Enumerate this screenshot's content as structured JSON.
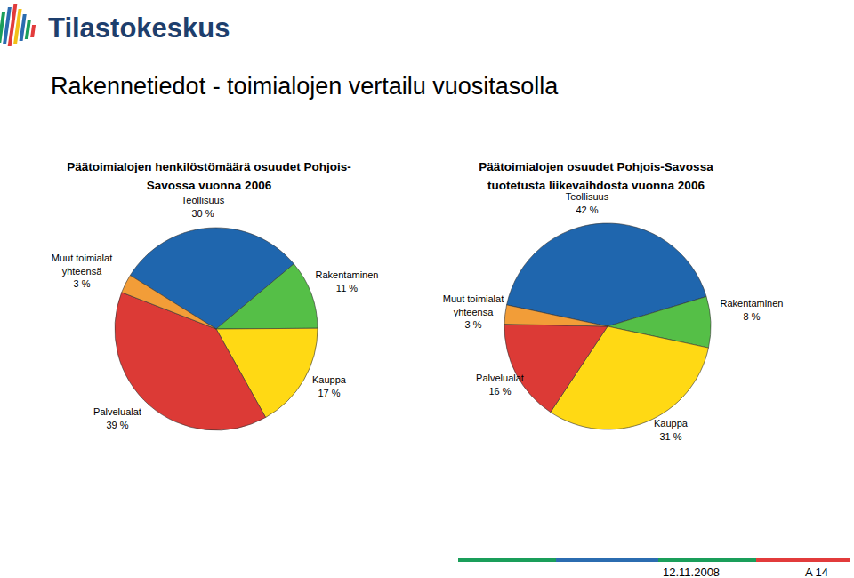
{
  "header": {
    "logo": "Tilastokeskus",
    "title": "Rakennetiedot - toimialojen vertailu vuositasolla"
  },
  "chart_data": [
    {
      "type": "pie",
      "title": "Päätoimialojen henkilöstömäärä osuudet Pohjois-Savossa vuonna 2006",
      "categories": [
        "Teollisuus",
        "Rakentaminen",
        "Kauppa",
        "Palvelualat",
        "Muut toimialat yhteensä"
      ],
      "values": [
        30,
        11,
        17,
        39,
        3
      ],
      "value_labels": [
        "30 %",
        "11 %",
        "17 %",
        "39 %",
        "3 %"
      ],
      "colors": [
        "#1f66ae",
        "#55bf47",
        "#ffd914",
        "#dc3a36",
        "#f29d38"
      ],
      "data_labels": true
    },
    {
      "type": "pie",
      "title": "Päätoimialojen osuudet Pohjois-Savossa tuotetusta liikevaihdosta vuonna 2006",
      "categories": [
        "Teollisuus",
        "Rakentaminen",
        "Kauppa",
        "Palvelualat",
        "Muut toimialat yhteensä"
      ],
      "values": [
        42,
        8,
        31,
        16,
        3
      ],
      "value_labels": [
        "42 %",
        "8 %",
        "31 %",
        "16 %",
        "3 %"
      ],
      "colors": [
        "#1f66ae",
        "#55bf47",
        "#ffd914",
        "#dc3a36",
        "#f29d38"
      ],
      "data_labels": true
    }
  ],
  "footer": {
    "date": "12.11.2008",
    "page": "A 14"
  }
}
